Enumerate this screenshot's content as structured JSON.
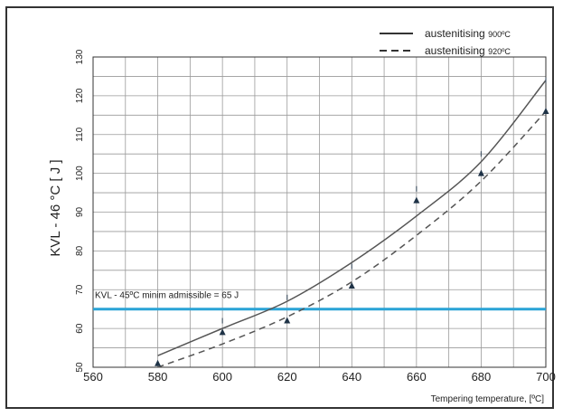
{
  "chart_data": {
    "type": "line",
    "ylabel": "KVL - 46 °C [ J ]",
    "xlabel": "Tempering temperature, [ºC]",
    "xlim": [
      560,
      700
    ],
    "ylim": [
      50,
      130
    ],
    "xticks": [
      560,
      580,
      600,
      620,
      640,
      660,
      680,
      700
    ],
    "yticks": [
      50,
      60,
      70,
      80,
      90,
      100,
      110,
      120,
      130
    ],
    "grid": true,
    "legend_position": "top-right",
    "series": [
      {
        "name": "austenitising 900ºC",
        "legend_main": "austenitising",
        "legend_unit": "900ºC",
        "style": "solid",
        "color": "#555555",
        "x": [
          580,
          600,
          620,
          640,
          660,
          680,
          700
        ],
        "y": [
          53,
          60,
          67,
          77,
          89,
          103,
          124
        ]
      },
      {
        "name": "austenitising 920ºC",
        "legend_main": "austenitising",
        "legend_unit": "920ºC",
        "style": "dashed",
        "color": "#555555",
        "x": [
          580,
          600,
          620,
          640,
          660,
          680,
          700
        ],
        "y": [
          50,
          56,
          63,
          72,
          84,
          98,
          116
        ]
      }
    ],
    "markers": [
      {
        "x": 580,
        "y": 51,
        "shape": "triangle"
      },
      {
        "x": 600,
        "y": 59,
        "shape": "triangle"
      },
      {
        "x": 600,
        "y": 62,
        "shape": "tick"
      },
      {
        "x": 620,
        "y": 62,
        "shape": "triangle"
      },
      {
        "x": 620,
        "y": 68,
        "shape": "tick"
      },
      {
        "x": 640,
        "y": 71,
        "shape": "triangle"
      },
      {
        "x": 640,
        "y": 76,
        "shape": "tick"
      },
      {
        "x": 660,
        "y": 93,
        "shape": "triangle"
      },
      {
        "x": 660,
        "y": 96,
        "shape": "tick"
      },
      {
        "x": 680,
        "y": 100,
        "shape": "triangle"
      },
      {
        "x": 680,
        "y": 105,
        "shape": "tick"
      },
      {
        "x": 700,
        "y": 116,
        "shape": "triangle"
      },
      {
        "x": 700,
        "y": 124,
        "shape": "tick"
      }
    ],
    "threshold": {
      "y": 65,
      "label": "KVL - 45ºC minim admissible = 65 J",
      "color": "#2aa3d6"
    }
  }
}
